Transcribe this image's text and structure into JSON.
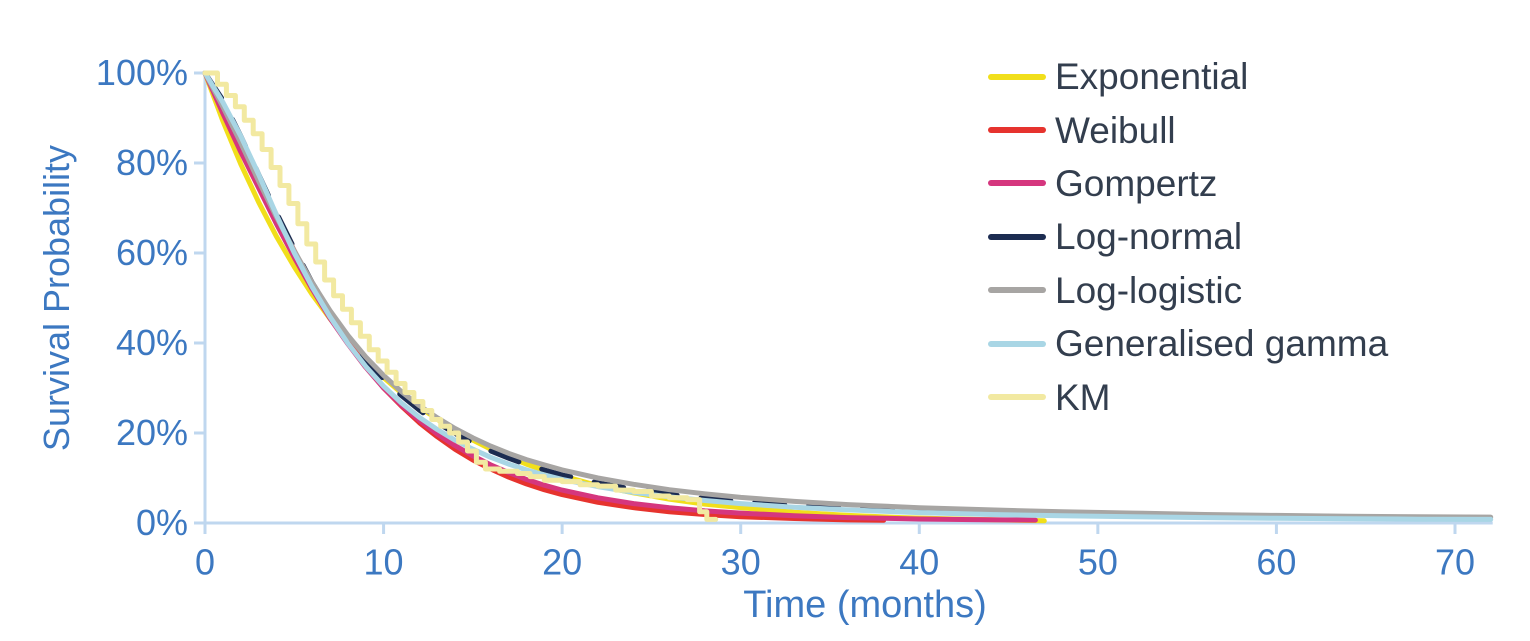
{
  "chart_data": {
    "type": "line",
    "title": "",
    "xlabel": "Time (months)",
    "ylabel": "Survival Probability",
    "xlim": [
      0,
      72
    ],
    "ylim": [
      0,
      100
    ],
    "x_ticks": [
      0,
      10,
      20,
      30,
      40,
      50,
      60,
      70
    ],
    "x_tick_labels": [
      "0",
      "10",
      "20",
      "30",
      "40",
      "50",
      "60",
      "70"
    ],
    "y_ticks": [
      0,
      20,
      40,
      60,
      80,
      100
    ],
    "y_tick_labels": [
      "0%",
      "20%",
      "40%",
      "60%",
      "80%",
      "100%"
    ],
    "grid": false,
    "legend_position": "upper right",
    "series": [
      {
        "name": "Exponential",
        "color": "#F1DF1B",
        "style": "line",
        "points": [
          [
            0,
            100
          ],
          [
            1,
            89.3
          ],
          [
            2,
            79.8
          ],
          [
            3,
            71.3
          ],
          [
            4,
            63.7
          ],
          [
            5,
            56.9
          ],
          [
            6,
            50.8
          ],
          [
            7,
            45.4
          ],
          [
            8,
            40.5
          ],
          [
            9,
            36.2
          ],
          [
            10,
            32.3
          ],
          [
            11,
            28.9
          ],
          [
            12,
            25.8
          ],
          [
            13,
            23.1
          ],
          [
            14,
            20.6
          ],
          [
            15,
            18.4
          ],
          [
            16,
            16.4
          ],
          [
            17,
            14.7
          ],
          [
            18,
            13.1
          ],
          [
            19,
            11.7
          ],
          [
            20,
            10.5
          ],
          [
            22,
            8.3
          ],
          [
            24,
            6.7
          ],
          [
            26,
            5.3
          ],
          [
            28,
            4.2
          ],
          [
            30,
            3.4
          ],
          [
            33,
            2.4
          ],
          [
            36,
            1.7
          ],
          [
            39,
            1.2
          ],
          [
            42,
            0.9
          ],
          [
            47,
            0.5
          ]
        ]
      },
      {
        "name": "Weibull",
        "color": "#E6332E",
        "style": "line",
        "points": [
          [
            0,
            100
          ],
          [
            1,
            92.0
          ],
          [
            2,
            84.5
          ],
          [
            3,
            76.5
          ],
          [
            4,
            68.5
          ],
          [
            5,
            60.5
          ],
          [
            6,
            53.0
          ],
          [
            7,
            46.5
          ],
          [
            8,
            40.5
          ],
          [
            9,
            35.0
          ],
          [
            10,
            30.0
          ],
          [
            11,
            26.0
          ],
          [
            12,
            22.3
          ],
          [
            13,
            19.2
          ],
          [
            14,
            16.4
          ],
          [
            15,
            14.0
          ],
          [
            16,
            12.0
          ],
          [
            17,
            10.2
          ],
          [
            18,
            8.7
          ],
          [
            19,
            7.4
          ],
          [
            20,
            6.3
          ],
          [
            22,
            4.6
          ],
          [
            24,
            3.4
          ],
          [
            26,
            2.5
          ],
          [
            28,
            1.9
          ],
          [
            30,
            1.4
          ],
          [
            33,
            1.0
          ],
          [
            36,
            0.7
          ],
          [
            38,
            0.6
          ]
        ]
      },
      {
        "name": "Gompertz",
        "color": "#D5367E",
        "style": "line",
        "points": [
          [
            0,
            100
          ],
          [
            1,
            91.0
          ],
          [
            2,
            82.5
          ],
          [
            3,
            74.5
          ],
          [
            4,
            66.5
          ],
          [
            5,
            59.0
          ],
          [
            6,
            52.0
          ],
          [
            7,
            45.5
          ],
          [
            8,
            39.8
          ],
          [
            9,
            34.6
          ],
          [
            10,
            30.0
          ],
          [
            11,
            26.2
          ],
          [
            12,
            22.8
          ],
          [
            13,
            19.8
          ],
          [
            14,
            17.2
          ],
          [
            15,
            14.9
          ],
          [
            16,
            12.9
          ],
          [
            17,
            11.2
          ],
          [
            18,
            9.7
          ],
          [
            19,
            8.4
          ],
          [
            20,
            7.3
          ],
          [
            22,
            5.6
          ],
          [
            24,
            4.3
          ],
          [
            26,
            3.4
          ],
          [
            28,
            2.7
          ],
          [
            30,
            2.2
          ],
          [
            33,
            1.6
          ],
          [
            36,
            1.2
          ],
          [
            40,
            0.9
          ],
          [
            43,
            0.75
          ],
          [
            46.5,
            0.65
          ]
        ]
      },
      {
        "name": "Log-normal",
        "color": "#1C2C51",
        "style": "line",
        "dashed": true,
        "points": [
          [
            0,
            100
          ],
          [
            1,
            94.0
          ],
          [
            2,
            86.0
          ],
          [
            3,
            77.5
          ],
          [
            4,
            69.0
          ],
          [
            5,
            61.0
          ],
          [
            6,
            53.5
          ],
          [
            7,
            47.0
          ],
          [
            8,
            41.3
          ],
          [
            9,
            36.3
          ],
          [
            10,
            32.0
          ],
          [
            11,
            28.3
          ],
          [
            12,
            25.1
          ],
          [
            13,
            22.3
          ],
          [
            14,
            19.9
          ],
          [
            15,
            17.8
          ],
          [
            16,
            16.0
          ],
          [
            17,
            14.4
          ],
          [
            18,
            13.0
          ],
          [
            19,
            11.8
          ],
          [
            20,
            10.7
          ],
          [
            22,
            8.9
          ],
          [
            24,
            7.5
          ],
          [
            26,
            6.4
          ],
          [
            28,
            5.5
          ],
          [
            30,
            4.8
          ],
          [
            33,
            4.0
          ],
          [
            36,
            3.4
          ],
          [
            40,
            2.8
          ],
          [
            43,
            2.4
          ],
          [
            47,
            2.1
          ]
        ]
      },
      {
        "name": "Log-logistic",
        "color": "#A7A5A3",
        "style": "line",
        "points": [
          [
            0,
            100
          ],
          [
            1,
            92.5
          ],
          [
            2,
            84.5
          ],
          [
            3,
            76.0
          ],
          [
            4,
            68.0
          ],
          [
            5,
            60.5
          ],
          [
            6,
            53.5
          ],
          [
            7,
            47.2
          ],
          [
            8,
            41.7
          ],
          [
            9,
            36.9
          ],
          [
            10,
            32.8
          ],
          [
            11,
            29.2
          ],
          [
            12,
            26.1
          ],
          [
            13,
            23.4
          ],
          [
            14,
            21.0
          ],
          [
            15,
            18.9
          ],
          [
            16,
            17.1
          ],
          [
            17,
            15.5
          ],
          [
            18,
            14.1
          ],
          [
            19,
            12.9
          ],
          [
            20,
            11.8
          ],
          [
            22,
            10.0
          ],
          [
            24,
            8.6
          ],
          [
            26,
            7.4
          ],
          [
            28,
            6.5
          ],
          [
            30,
            5.7
          ],
          [
            33,
            4.8
          ],
          [
            36,
            4.1
          ],
          [
            40,
            3.4
          ],
          [
            44,
            2.9
          ],
          [
            48,
            2.5
          ],
          [
            52,
            2.2
          ],
          [
            56,
            1.9
          ],
          [
            60,
            1.7
          ],
          [
            64,
            1.5
          ],
          [
            68,
            1.4
          ],
          [
            72,
            1.3
          ]
        ]
      },
      {
        "name": "Generalised gamma",
        "color": "#A9D6E5",
        "style": "line",
        "points": [
          [
            0,
            100
          ],
          [
            1,
            93.5
          ],
          [
            2,
            86.0
          ],
          [
            3,
            77.5
          ],
          [
            4,
            68.5
          ],
          [
            5,
            60.0
          ],
          [
            6,
            52.5
          ],
          [
            7,
            45.8
          ],
          [
            8,
            39.9
          ],
          [
            9,
            34.8
          ],
          [
            10,
            30.4
          ],
          [
            11,
            26.7
          ],
          [
            12,
            23.5
          ],
          [
            13,
            20.8
          ],
          [
            14,
            18.4
          ],
          [
            15,
            16.4
          ],
          [
            16,
            14.6
          ],
          [
            17,
            13.1
          ],
          [
            18,
            11.8
          ],
          [
            19,
            10.7
          ],
          [
            20,
            9.7
          ],
          [
            22,
            8.1
          ],
          [
            24,
            6.8
          ],
          [
            26,
            5.8
          ],
          [
            28,
            5.0
          ],
          [
            30,
            4.3
          ],
          [
            33,
            3.5
          ],
          [
            36,
            2.9
          ],
          [
            40,
            2.3
          ],
          [
            44,
            1.9
          ],
          [
            48,
            1.6
          ],
          [
            52,
            1.4
          ],
          [
            56,
            1.2
          ],
          [
            60,
            1.05
          ],
          [
            64,
            0.95
          ],
          [
            68,
            0.85
          ],
          [
            72,
            0.8
          ]
        ]
      },
      {
        "name": "KM",
        "color": "#F2E9A1",
        "style": "step",
        "points": [
          [
            0,
            100
          ],
          [
            0.7,
            97.5
          ],
          [
            1.2,
            95
          ],
          [
            1.7,
            92.5
          ],
          [
            2.2,
            89.5
          ],
          [
            2.7,
            86.5
          ],
          [
            3.2,
            83
          ],
          [
            3.7,
            79
          ],
          [
            4.2,
            75
          ],
          [
            4.7,
            71
          ],
          [
            5.2,
            66.5
          ],
          [
            5.7,
            62
          ],
          [
            6.2,
            58
          ],
          [
            6.7,
            54
          ],
          [
            7.2,
            50.5
          ],
          [
            7.7,
            47.5
          ],
          [
            8.2,
            44.5
          ],
          [
            8.7,
            41.5
          ],
          [
            9.2,
            38.5
          ],
          [
            9.7,
            36
          ],
          [
            10.2,
            33.5
          ],
          [
            10.7,
            31
          ],
          [
            11.2,
            29
          ],
          [
            11.7,
            27
          ],
          [
            12.2,
            25
          ],
          [
            12.7,
            23
          ],
          [
            13.2,
            21.5
          ],
          [
            13.7,
            20
          ],
          [
            14.2,
            18
          ],
          [
            14.7,
            16
          ],
          [
            15.2,
            13.5
          ],
          [
            15.7,
            12
          ],
          [
            16.5,
            11.5
          ],
          [
            17.5,
            11
          ],
          [
            18.2,
            10.3
          ],
          [
            19,
            9.5
          ],
          [
            20,
            9.2
          ],
          [
            21,
            8.5
          ],
          [
            22,
            8.2
          ],
          [
            23,
            7.3
          ],
          [
            24,
            7
          ],
          [
            25,
            6
          ],
          [
            26,
            5.6
          ],
          [
            27,
            5.2
          ],
          [
            27.7,
            2.5
          ],
          [
            28.1,
            0.8
          ],
          [
            28.6,
            0.8
          ]
        ]
      }
    ]
  },
  "styles": {
    "axis_line_color": "#BFD7EF",
    "tick_label_color": "#3C78C1",
    "axis_title_color": "#3C78C1",
    "legend_text_color": "#333E4E",
    "background": "#FFFFFF"
  }
}
